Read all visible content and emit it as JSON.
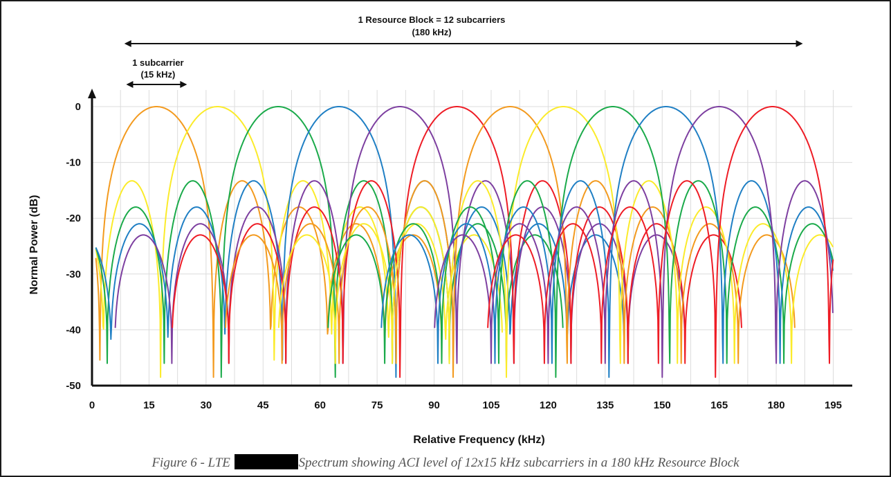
{
  "chart_data": {
    "type": "line",
    "title": "",
    "xlabel": "Relative Frequency (kHz)",
    "ylabel": "Normal Power (dB)",
    "xlim": [
      0,
      200
    ],
    "ylim": [
      -50,
      3
    ],
    "x_ticks": [
      "0",
      "15",
      "30",
      "45",
      "60",
      "75",
      "90",
      "105",
      "120",
      "135",
      "150",
      "165",
      "180",
      "195"
    ],
    "y_ticks": [
      "0",
      "-10",
      "-20",
      "-30",
      "-40",
      "-50"
    ],
    "grid": true,
    "legend": "none",
    "subcarrier_spacing_khz": 15,
    "subcarrier_centers_khz": [
      17,
      33,
      49,
      65,
      81,
      96,
      110,
      124,
      137,
      151,
      165,
      179
    ],
    "subcarrier_colors": [
      "#f39a1e",
      "#fbeb2a",
      "#1aaa4a",
      "#1f7fc4",
      "#7d3fa0",
      "#ee1c25",
      "#f39a1e",
      "#fbeb2a",
      "#1aaa4a",
      "#1f7fc4",
      "#7d3fa0",
      "#ee1c25"
    ],
    "sidelobe_levels_db": [
      -13.3,
      -18,
      -21,
      -23
    ],
    "annotations": {
      "resource_block": {
        "line1": "1 Resource Block = 12 subcarriers",
        "line2": "(180 kHz)",
        "x_start": 8.5,
        "x_end": 187
      },
      "subcarrier": {
        "line1": "1 subcarrier",
        "line2": "(15 kHz)",
        "x_start": 9,
        "x_end": 25
      }
    }
  },
  "caption": {
    "prefix": "Figure 6 - LTE",
    "suffix": "Spectrum showing ACI level of 12x15 kHz subcarriers in a 180 kHz Resource Block"
  }
}
